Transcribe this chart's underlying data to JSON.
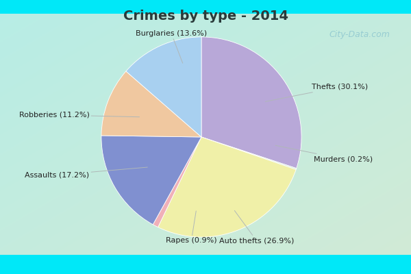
{
  "title": "Crimes by type - 2014",
  "slices": [
    {
      "label": "Thefts (30.1%)",
      "value": 30.1,
      "color": "#b8a8d8",
      "pct": 30.1
    },
    {
      "label": "Murders (0.2%)",
      "value": 0.2,
      "color": "#d0e8d8",
      "pct": 0.2
    },
    {
      "label": "Auto thefts (26.9%)",
      "value": 26.9,
      "color": "#f0f0a8",
      "pct": 26.9
    },
    {
      "label": "Rapes (0.9%)",
      "value": 0.9,
      "color": "#f0b0b8",
      "pct": 0.9
    },
    {
      "label": "Assaults (17.2%)",
      "value": 17.2,
      "color": "#8090d0",
      "pct": 17.2
    },
    {
      "label": "Robberies (11.2%)",
      "value": 11.2,
      "color": "#f0c8a0",
      "pct": 11.2
    },
    {
      "label": "Burglaries (13.6%)",
      "value": 13.6,
      "color": "#a8d0f0",
      "pct": 13.6
    }
  ],
  "startangle": 90,
  "bg_outer": "#00e8f8",
  "bg_inner_tl": [
    0.72,
    0.93,
    0.9
  ],
  "bg_inner_br": [
    0.82,
    0.92,
    0.84
  ],
  "title_color": "#2a3a3a",
  "label_color": "#222222",
  "watermark": "City-Data.com",
  "watermark_color": "#90c8d0"
}
